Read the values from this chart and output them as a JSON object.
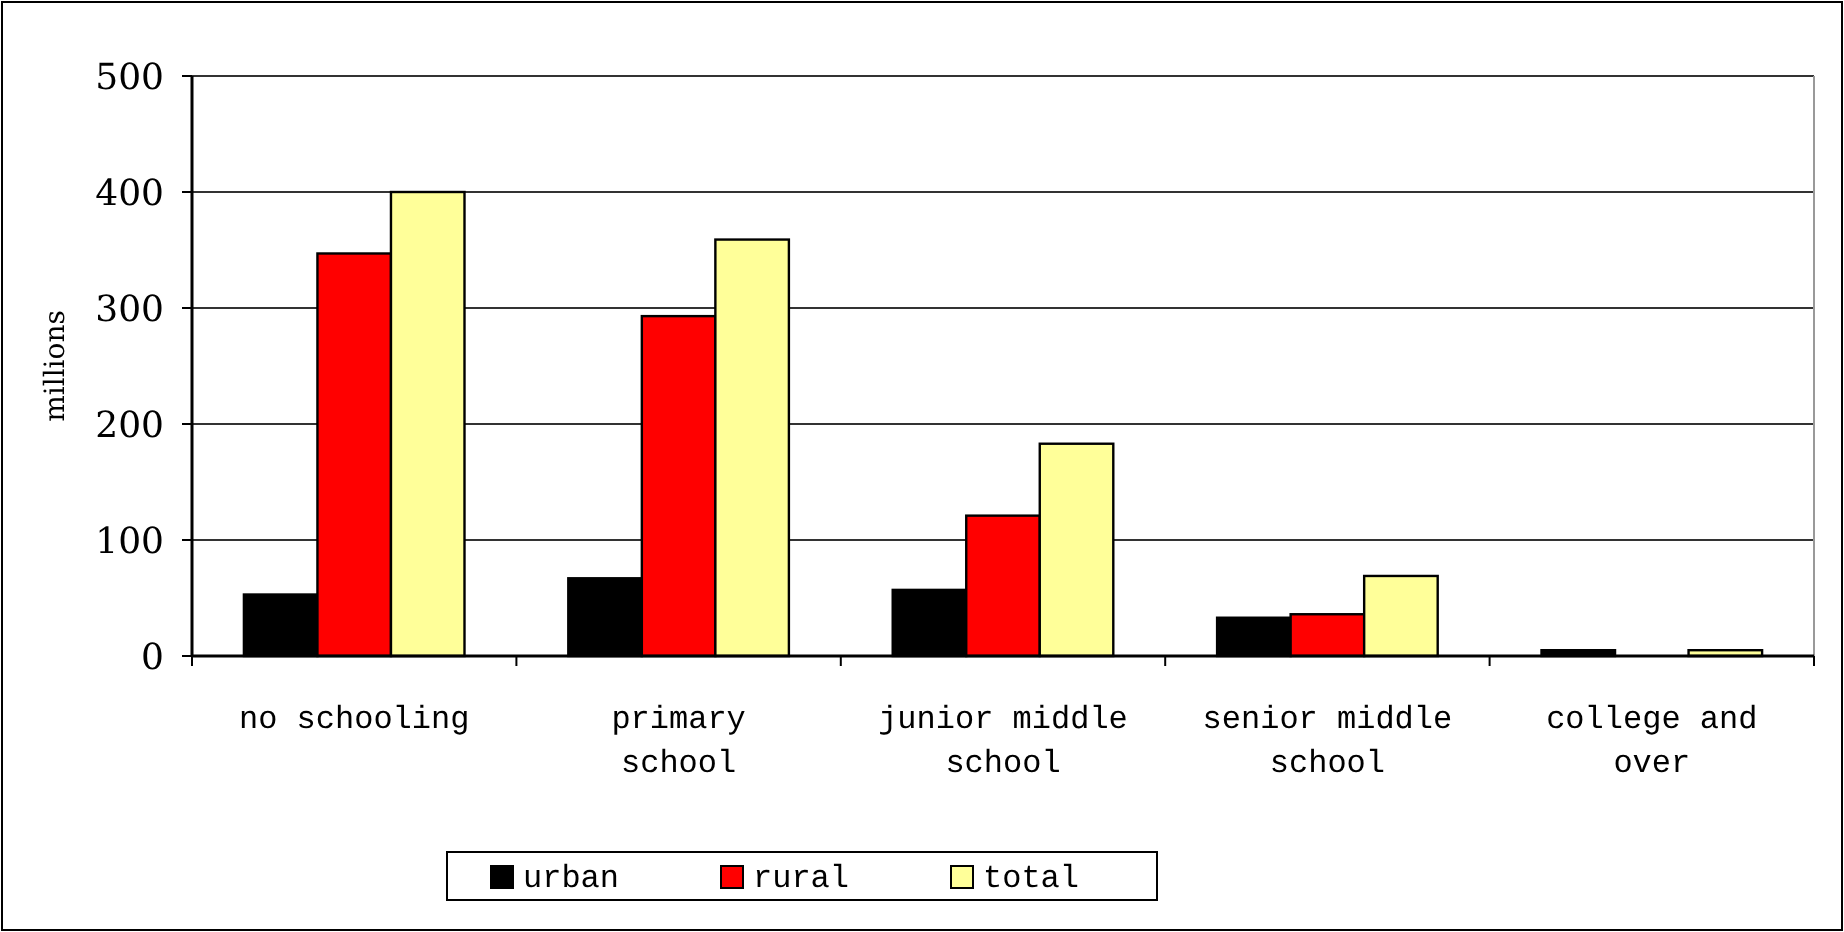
{
  "chart_data": {
    "type": "bar",
    "ylabel": "millions",
    "categories": [
      "no schooling",
      "primary school",
      "junior middle school",
      "senior middle school",
      "college and over"
    ],
    "series": [
      {
        "name": "urban",
        "color": "#000000",
        "values": [
          53,
          67,
          57,
          33,
          5
        ]
      },
      {
        "name": "rural",
        "color": "#ff0000",
        "values": [
          347,
          293,
          121,
          36,
          0
        ]
      },
      {
        "name": "total",
        "color": "#ffff99",
        "values": [
          400,
          359,
          183,
          69,
          5
        ]
      }
    ],
    "ylim": [
      0,
      500
    ],
    "yticks": [
      0,
      100,
      200,
      300,
      400,
      500
    ],
    "grid": "y",
    "legend": "bottom"
  }
}
